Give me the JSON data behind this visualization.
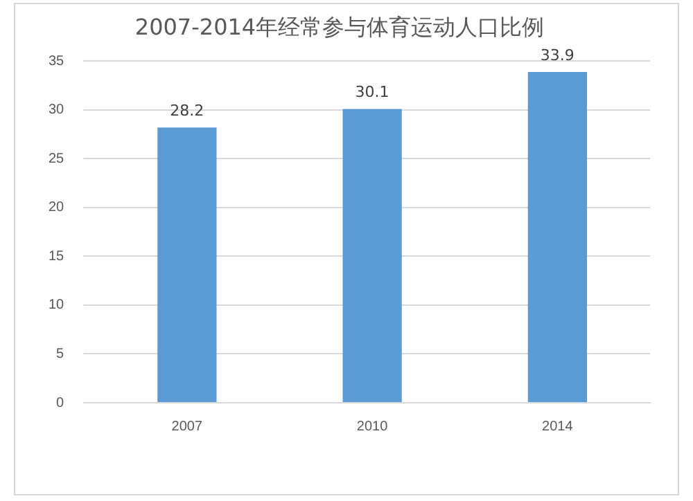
{
  "chart_data": {
    "type": "bar",
    "title": "2007-2014年经常参与体育运动人口比例",
    "categories": [
      "2007",
      "2010",
      "2014"
    ],
    "values": [
      28.2,
      30.1,
      33.9
    ],
    "color": "#5b9bd5",
    "ylim": [
      0,
      35
    ],
    "yticks": [
      0,
      5,
      10,
      15,
      20,
      25,
      30,
      35
    ],
    "grid": "y",
    "data_labels": true
  }
}
